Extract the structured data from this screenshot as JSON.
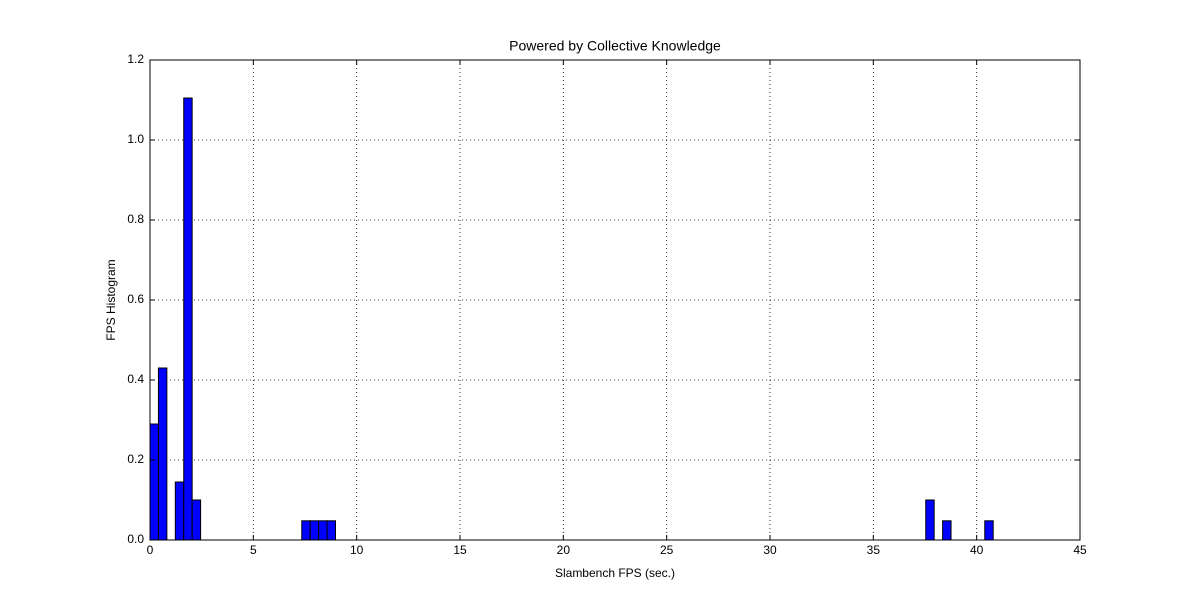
{
  "chart_data": {
    "type": "histogram",
    "title": "Powered by Collective Knowledge",
    "x_label": "Slambench FPS (sec.)",
    "y_label": "FPS Histogram",
    "color": "#0000ff",
    "bins": [
      0,
      0.408,
      0.816,
      1.224,
      1.632,
      2.04,
      2.448,
      2.856,
      3.264,
      3.672,
      4.08,
      4.488,
      4.896,
      5.304,
      5.712,
      6.12,
      6.528,
      6.936,
      7.344,
      7.752,
      8.16,
      8.568,
      8.976,
      9.384,
      9.792,
      10.2,
      10.608,
      11.016,
      11.424,
      11.832,
      12.24,
      12.648,
      13.056,
      13.464,
      13.872,
      14.28,
      14.688,
      15.096,
      15.504,
      15.912,
      16.32,
      16.728,
      17.136,
      17.544,
      17.952,
      18.36,
      18.768,
      19.176,
      19.584,
      19.992,
      20.4,
      20.808,
      21.216,
      21.624,
      22.032,
      22.44,
      22.848,
      23.256,
      23.664,
      24.072,
      24.48,
      24.888,
      25.296,
      25.704,
      26.112,
      26.52,
      26.928,
      27.336,
      27.744,
      28.152,
      28.56,
      28.968,
      29.376,
      29.784,
      30.192,
      30.6,
      31.008,
      31.416,
      31.824,
      32.232,
      32.64,
      33.048,
      33.456,
      33.864,
      34.272,
      34.68,
      35.088,
      35.496,
      35.904,
      36.312,
      36.72,
      37.128,
      37.536,
      37.944,
      38.352,
      38.76,
      39.168,
      39.576,
      39.984,
      40.392,
      40.8
    ],
    "counts": [
      0.29,
      0.43,
      0,
      0.145,
      1.105,
      0.1,
      0,
      0,
      0,
      0,
      0,
      0,
      0,
      0,
      0,
      0,
      0,
      0,
      0.048,
      0.048,
      0.048,
      0.048,
      0,
      0,
      0,
      0,
      0,
      0,
      0,
      0,
      0,
      0,
      0,
      0,
      0,
      0,
      0,
      0,
      0,
      0,
      0,
      0,
      0,
      0,
      0,
      0,
      0,
      0,
      0,
      0,
      0,
      0,
      0,
      0,
      0,
      0,
      0,
      0,
      0,
      0,
      0,
      0,
      0,
      0,
      0,
      0,
      0,
      0,
      0,
      0,
      0,
      0,
      0,
      0,
      0,
      0,
      0,
      0,
      0,
      0,
      0,
      0,
      0,
      0,
      0,
      0,
      0,
      0,
      0,
      0,
      0,
      0,
      0.1,
      0,
      0.048,
      0,
      0,
      0,
      0,
      0.048
    ],
    "xlim": [
      0,
      45
    ],
    "xticks": [
      0,
      5,
      10,
      15,
      20,
      25,
      30,
      35,
      40,
      45
    ],
    "ylim": [
      0,
      1.2
    ],
    "yticks": [
      {
        "value": 0,
        "label": "0.0"
      },
      0.2,
      0.4,
      0.6,
      0.8,
      {
        "value": 1,
        "label": "1.0"
      },
      1.2
    ],
    "grid": true
  }
}
